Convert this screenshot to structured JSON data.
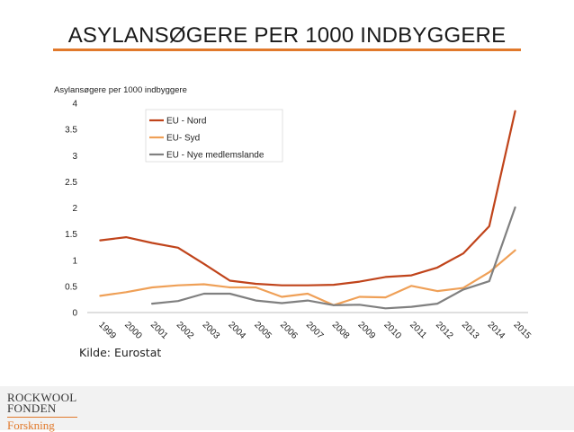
{
  "title": "ASYLANSØGERE PER 1000 INDBYGGERE",
  "source_note": "Kilde: Eurostat",
  "logo": {
    "line1": "ROCKWOOL",
    "line2": "FONDEN",
    "line3": "Forskning"
  },
  "colors": {
    "accent": "#e1792b",
    "nord": "#c0441b",
    "syd": "#efa057",
    "nye": "#808080"
  },
  "chart_data": {
    "type": "line",
    "ylabel": "Asylansøgere per 1000 indbyggere",
    "xlabel": "",
    "ylim": [
      0,
      4
    ],
    "yticks": [
      "0",
      "0.5",
      "1",
      "1.5",
      "2",
      "2.5",
      "3",
      "3.5",
      "4"
    ],
    "categories": [
      "1999",
      "2000",
      "2001",
      "2002",
      "2003",
      "2004",
      "2005",
      "2006",
      "2007",
      "2008",
      "2009",
      "2010",
      "2011",
      "2012",
      "2013",
      "2014",
      "2015"
    ],
    "legend_position": "top-center",
    "grid": false,
    "series": [
      {
        "name": "EU - Nord",
        "color": "#c0441b",
        "values": [
          1.38,
          1.44,
          1.33,
          1.24,
          0.93,
          0.61,
          0.55,
          0.52,
          0.52,
          0.53,
          0.59,
          0.68,
          0.71,
          0.86,
          1.13,
          1.65,
          3.85
        ]
      },
      {
        "name": "EU- Syd",
        "color": "#efa057",
        "values": [
          0.32,
          0.39,
          0.48,
          0.52,
          0.54,
          0.48,
          0.48,
          0.3,
          0.36,
          0.14,
          0.3,
          0.29,
          0.51,
          0.41,
          0.47,
          0.77,
          1.19
        ]
      },
      {
        "name": "EU - Nye medlemslande",
        "color": "#808080",
        "values": [
          null,
          null,
          0.17,
          0.22,
          0.36,
          0.36,
          0.23,
          0.18,
          0.23,
          0.14,
          0.15,
          0.08,
          0.11,
          0.17,
          0.44,
          0.6,
          2.01
        ]
      }
    ]
  }
}
